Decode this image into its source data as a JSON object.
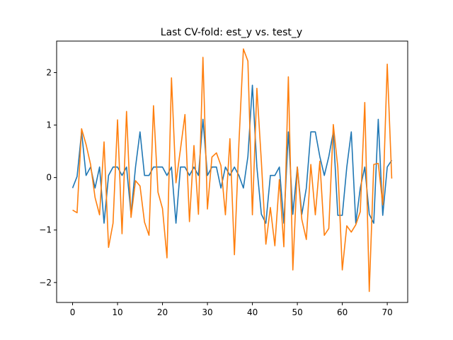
{
  "chart_data": {
    "type": "line",
    "title": "Last CV-fold: est_y vs. test_y",
    "xlabel": "",
    "ylabel": "",
    "xlim": [
      -3.55,
      74.55
    ],
    "ylim": [
      -2.38,
      2.6
    ],
    "xticks": [
      0,
      10,
      20,
      30,
      40,
      50,
      60,
      70
    ],
    "yticks": [
      -2,
      -1,
      0,
      1,
      2
    ],
    "grid": false,
    "legend": "none",
    "series": [
      {
        "color": "#1f77b4",
        "x": [
          0,
          1,
          2,
          3,
          4,
          5,
          6,
          7,
          8,
          9,
          10,
          11,
          12,
          13,
          14,
          15,
          16,
          17,
          18,
          19,
          20,
          21,
          22,
          23,
          24,
          25,
          26,
          27,
          28,
          29,
          30,
          31,
          32,
          33,
          34,
          35,
          36,
          37,
          38,
          39,
          40,
          41,
          42,
          43,
          44,
          45,
          46,
          47,
          48,
          49,
          50,
          51,
          52,
          53,
          54,
          55,
          56,
          57,
          58,
          59,
          60,
          61,
          62,
          63,
          64,
          65,
          66,
          67,
          68,
          69,
          70,
          71
        ],
        "y": [
          -0.2,
          0.02,
          0.87,
          0.04,
          0.2,
          -0.2,
          0.2,
          -0.87,
          0.04,
          0.2,
          0.2,
          0.04,
          0.2,
          -0.7,
          0.2,
          0.87,
          0.04,
          0.04,
          0.2,
          0.2,
          0.2,
          0.04,
          0.2,
          -0.87,
          0.2,
          0.2,
          0.04,
          0.2,
          0.04,
          1.11,
          0.04,
          0.2,
          0.2,
          -0.2,
          0.2,
          0.04,
          0.2,
          0.04,
          -0.2,
          0.4,
          1.76,
          0.2,
          -0.7,
          -0.87,
          0.04,
          0.04,
          0.2,
          -0.87,
          0.87,
          -0.7,
          0.2,
          -0.7,
          -0.2,
          0.87,
          0.87,
          0.4,
          0.04,
          0.4,
          0.87,
          -0.72,
          -0.72,
          0.2,
          0.87,
          -0.87,
          -0.2,
          0.2,
          -0.7,
          -0.87,
          1.11,
          -0.72,
          0.2,
          0.33
        ]
      },
      {
        "color": "#ff7f0e",
        "x": [
          0,
          1,
          2,
          3,
          4,
          5,
          6,
          7,
          8,
          9,
          10,
          11,
          12,
          13,
          14,
          15,
          16,
          17,
          18,
          19,
          20,
          21,
          22,
          23,
          24,
          25,
          26,
          27,
          28,
          29,
          30,
          31,
          32,
          33,
          34,
          35,
          36,
          37,
          38,
          39,
          40,
          41,
          42,
          43,
          44,
          45,
          46,
          47,
          48,
          49,
          50,
          51,
          52,
          53,
          54,
          55,
          56,
          57,
          58,
          59,
          60,
          61,
          62,
          63,
          64,
          65,
          66,
          67,
          68,
          69,
          70,
          71
        ],
        "y": [
          -0.62,
          -0.67,
          0.93,
          0.63,
          0.25,
          -0.38,
          -0.71,
          0.68,
          -1.33,
          -0.87,
          1.1,
          -1.07,
          1.26,
          -0.76,
          -0.06,
          -0.16,
          -0.85,
          -1.1,
          1.37,
          -0.28,
          -0.59,
          -1.53,
          1.9,
          -0.1,
          0.54,
          1.2,
          -0.84,
          0.61,
          -0.7,
          2.29,
          -0.6,
          0.39,
          0.47,
          0.23,
          -0.71,
          0.74,
          -1.47,
          0.65,
          2.45,
          2.22,
          -0.71,
          1.7,
          0.3,
          -1.27,
          -0.57,
          -1.3,
          -0.04,
          -1.32,
          1.92,
          -1.76,
          0.2,
          -0.8,
          -1.18,
          0.25,
          -0.71,
          0.31,
          -1.1,
          -0.97,
          1.01,
          0.2,
          -1.76,
          -0.92,
          -1.04,
          -0.9,
          -0.65,
          1.43,
          -2.17,
          0.25,
          0.27,
          -0.52,
          2.16,
          -0.02
        ]
      }
    ]
  }
}
